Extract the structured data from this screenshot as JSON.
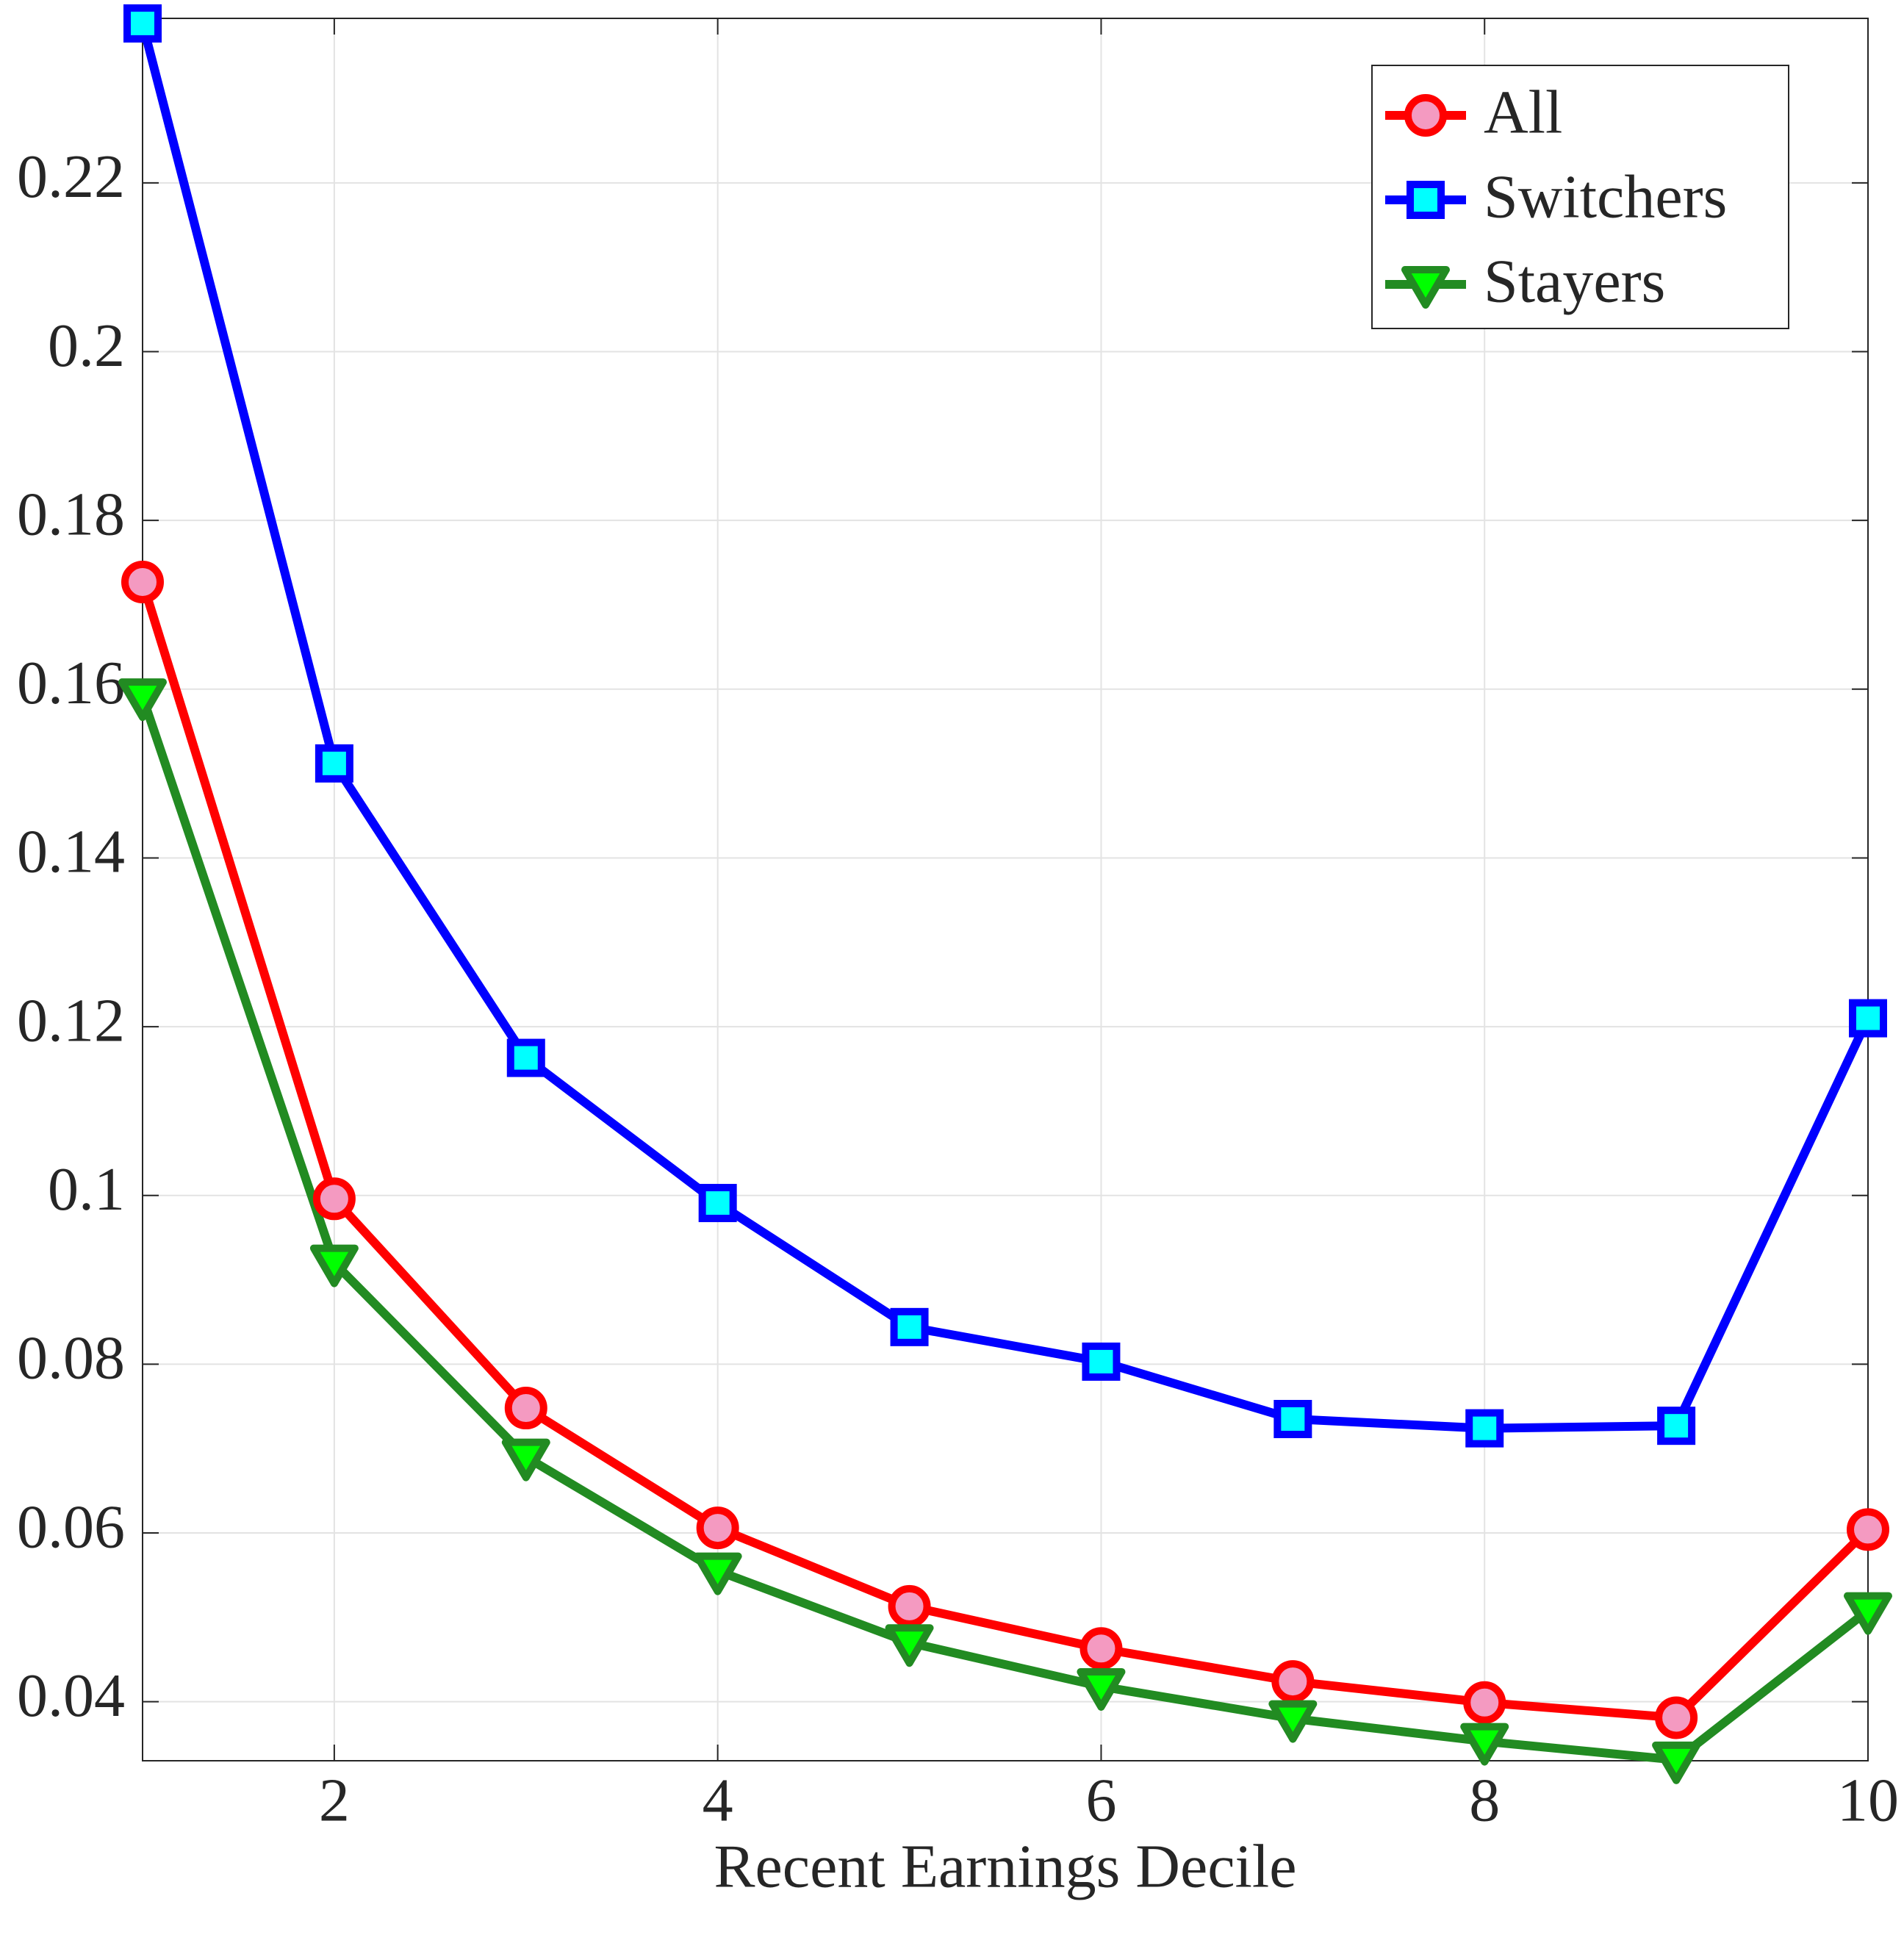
{
  "chart_data": {
    "type": "line",
    "xlabel": "Recent Earnings Decile",
    "x": [
      1,
      2,
      3,
      4,
      5,
      6,
      7,
      8,
      9,
      10
    ],
    "series": [
      {
        "name": "All",
        "color": "#ff0000",
        "marker": "circle",
        "marker_fill": "#f49ac1",
        "values": [
          0.1727,
          0.0996,
          0.0748,
          0.0606,
          0.0513,
          0.0463,
          0.0424,
          0.0399,
          0.0381,
          0.0604
        ]
      },
      {
        "name": "Switchers",
        "color": "#0000ff",
        "marker": "square",
        "marker_fill": "#00ffff",
        "values": [
          0.2389,
          0.1512,
          0.1163,
          0.0991,
          0.0844,
          0.0803,
          0.0735,
          0.0724,
          0.0727,
          0.121
        ]
      },
      {
        "name": "Stayers",
        "color": "#228b22",
        "marker": "triangle-down",
        "marker_fill": "#00ff00",
        "values": [
          0.1591,
          0.092,
          0.069,
          0.0555,
          0.047,
          0.0418,
          0.038,
          0.0353,
          0.0331,
          0.0508
        ]
      }
    ],
    "xlim": [
      1,
      10
    ],
    "xticks": [
      2,
      4,
      6,
      8,
      10
    ],
    "ylim": [
      0.033,
      0.2395
    ],
    "yticks": [
      0.04,
      0.06,
      0.08,
      0.1,
      0.12,
      0.14,
      0.16,
      0.18,
      0.2,
      0.22
    ],
    "grid": true,
    "legend": "northeast"
  }
}
